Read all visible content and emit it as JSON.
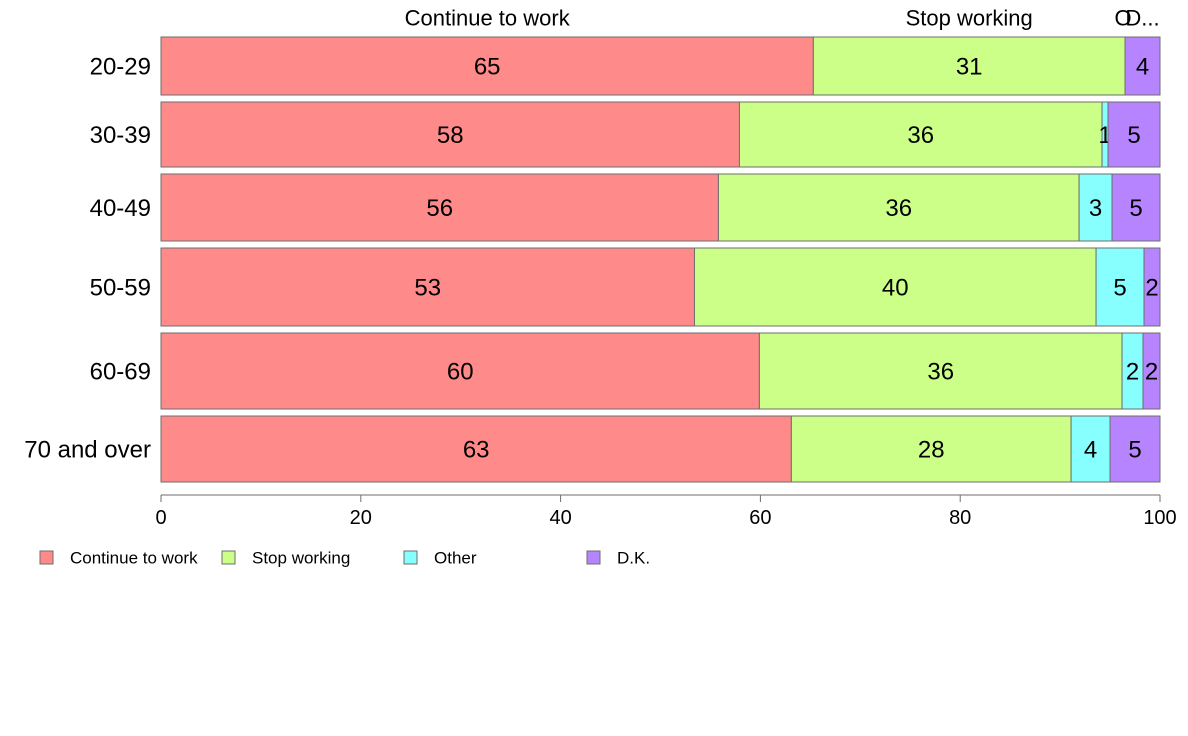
{
  "chart_data": {
    "type": "bar",
    "orientation": "horizontal",
    "stacked": true,
    "title": "",
    "xlabel": "",
    "ylabel": "",
    "xlim": [
      0,
      100
    ],
    "x_ticks": [
      0,
      20,
      40,
      60,
      80,
      100
    ],
    "categories": [
      "20-29",
      "30-39",
      "40-49",
      "50-59",
      "60-69",
      "70 and over"
    ],
    "series": [
      {
        "name": "Continue to work",
        "color": "#FF8A8A",
        "values": [
          65.3,
          57.9,
          55.8,
          53.4,
          59.9,
          63.1
        ]
      },
      {
        "name": "Stop working",
        "color": "#CCFF88",
        "values": [
          31.2,
          36.3,
          36.1,
          40.2,
          36.3,
          28.0
        ]
      },
      {
        "name": "Other",
        "color": "#88FFFF",
        "values": [
          0,
          0.6,
          3.3,
          4.8,
          2.1,
          3.9
        ]
      },
      {
        "name": "D.K.",
        "color": "#B784FF",
        "values": [
          3.5,
          5.2,
          4.8,
          1.6,
          1.7,
          5.0
        ]
      }
    ],
    "data_labels": [
      [
        "65",
        "31",
        "",
        "4"
      ],
      [
        "58",
        "36",
        "1",
        "5"
      ],
      [
        "56",
        "36",
        "3",
        "5"
      ],
      [
        "53",
        "40",
        "5",
        "2"
      ],
      [
        "60",
        "36",
        "2",
        "2"
      ],
      [
        "63",
        "28",
        "4",
        "5"
      ]
    ],
    "top_labels": [
      "Continue to work",
      "Stop working",
      "O",
      "D..."
    ],
    "grid": false,
    "legend": {
      "position": "bottom-left",
      "entries": [
        "Continue to work",
        "Stop working",
        "Other",
        "D.K."
      ]
    }
  }
}
